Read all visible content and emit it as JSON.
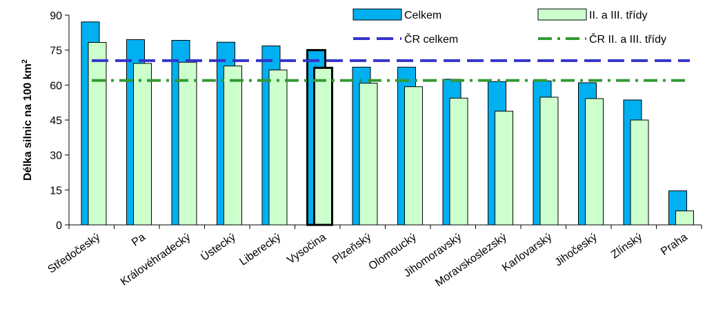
{
  "chart_data": {
    "type": "bar",
    "ylabel": "Délka silnic na 100 km",
    "ylabel_sup": "2",
    "ylim": [
      0,
      90
    ],
    "yticks": [
      "0",
      "15",
      "30",
      "45",
      "60",
      "75",
      "90"
    ],
    "grid": false,
    "legend_position": "top-right",
    "categories": [
      "Středočeský",
      "Pardubický",
      "Královéhradecký",
      "Ústecký",
      "Liberecký",
      "Vysočina",
      "Plzeňský",
      "Olomoucký",
      "Jihomoravský",
      "Moravskoslezský",
      "Karlovarský",
      "Jihočeský",
      "Zlínský",
      "Praha"
    ],
    "category_labels_shown": [
      "Středočeský",
      "Pa",
      "Královéhradecký",
      "Ústecký",
      "Liberecký",
      "Vysočina",
      "Plzeňský",
      "Olomoucký",
      "Jihomoravský",
      "Moravskoslezský",
      "Karlovarský",
      "Jihočeský",
      "Zlínský",
      "Praha"
    ],
    "highlighted_category": "Vysočina",
    "series": [
      {
        "name": "Celkem",
        "color": "#00B0F0",
        "values": [
          87.1,
          79.5,
          79.2,
          78.4,
          76.8,
          75.0,
          67.7,
          67.7,
          62.5,
          61.5,
          61.8,
          61.0,
          53.6,
          14.6
        ]
      },
      {
        "name": "II. a III. třídy",
        "color": "#CCFFCC",
        "values": [
          78.3,
          69.3,
          69.8,
          68.2,
          66.5,
          67.4,
          60.8,
          59.3,
          54.4,
          48.8,
          54.8,
          54.2,
          45.0,
          6.0
        ]
      }
    ],
    "reference_lines": [
      {
        "name": "ČR celkem",
        "value": 70.5,
        "color": "#3333CC",
        "style": "dashed"
      },
      {
        "name": "ČR II. a III. třídy",
        "value": 62.0,
        "color": "#339933",
        "style": "dash-dot"
      }
    ]
  }
}
